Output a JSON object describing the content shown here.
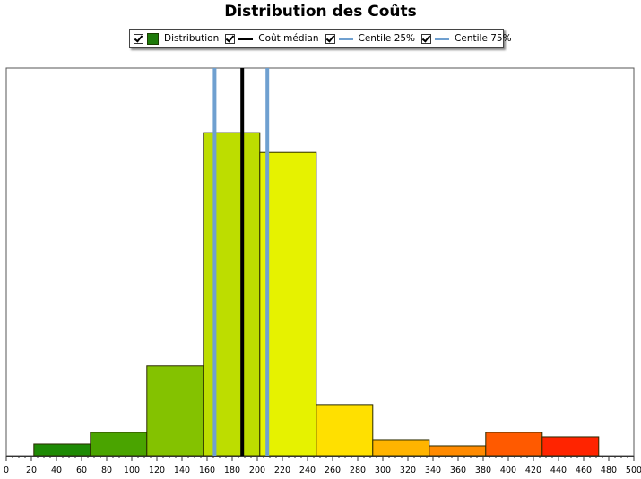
{
  "chart_data": {
    "type": "bar",
    "title": "Distribution des Coûts",
    "xlabel": "",
    "ylabel": "",
    "xlim": [
      0,
      500
    ],
    "x_ticks": [
      "0",
      "20",
      "40",
      "60",
      "80",
      "100",
      "120",
      "140",
      "160",
      "180",
      "200",
      "220",
      "240",
      "260",
      "280",
      "300",
      "320",
      "340",
      "360",
      "380",
      "400",
      "420",
      "440",
      "460",
      "480",
      "500"
    ],
    "bins": [
      {
        "start": 22,
        "end": 67,
        "value": 13,
        "color": "#1e8a05"
      },
      {
        "start": 67,
        "end": 112,
        "value": 26,
        "color": "#4aa400"
      },
      {
        "start": 112,
        "end": 157,
        "value": 100,
        "color": "#84c200"
      },
      {
        "start": 157,
        "end": 202,
        "value": 360,
        "color": "#bddd00"
      },
      {
        "start": 202,
        "end": 247,
        "value": 338,
        "color": "#e6f200"
      },
      {
        "start": 247,
        "end": 292,
        "value": 57,
        "color": "#ffe000"
      },
      {
        "start": 292,
        "end": 337,
        "value": 18,
        "color": "#ffb400"
      },
      {
        "start": 337,
        "end": 382,
        "value": 11,
        "color": "#ff8a00"
      },
      {
        "start": 382,
        "end": 427,
        "value": 26,
        "color": "#ff5a00"
      },
      {
        "start": 427,
        "end": 472,
        "value": 21,
        "color": "#ff2400"
      }
    ],
    "ylim": [
      0,
      432
    ],
    "median": 188,
    "percentile25": 166,
    "percentile75": 208,
    "grid": false,
    "legend_position": "top"
  },
  "legend": [
    {
      "label": "Distribution",
      "kind": "box",
      "color": "#1e7a0a"
    },
    {
      "label": "Coût médian",
      "kind": "line",
      "color": "#000000"
    },
    {
      "label": "Centile 25%",
      "kind": "line",
      "color": "#6fa0d0"
    },
    {
      "label": "Centile 75%",
      "kind": "line",
      "color": "#6fa0d0"
    }
  ]
}
